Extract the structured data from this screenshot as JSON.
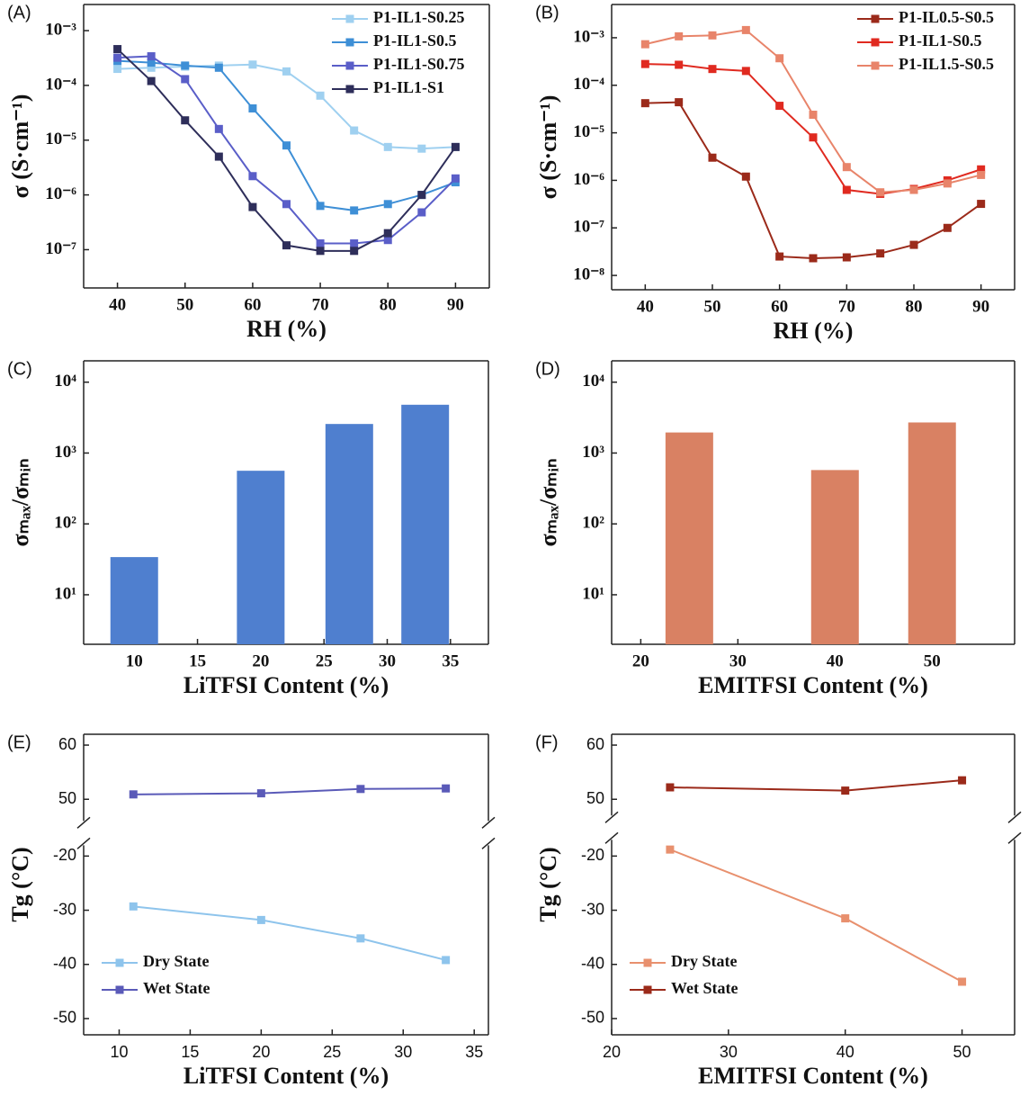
{
  "chart_data": [
    {
      "type": "line",
      "panel": "(A)",
      "xlabel": "RH (%)",
      "ylabel": "σ (S·cm⁻¹)",
      "log_y": true,
      "legend": "upper right",
      "xlim": [
        35,
        95
      ],
      "xticks": [
        40,
        50,
        60,
        70,
        80,
        90
      ],
      "ylim": [
        2e-08,
        0.003
      ],
      "yticks": [
        {
          "value": 1e-07,
          "label": "10⁻⁷"
        },
        {
          "value": 1e-06,
          "label": "10⁻⁶"
        },
        {
          "value": 1e-05,
          "label": "10⁻⁵"
        },
        {
          "value": 0.0001,
          "label": "10⁻⁴"
        },
        {
          "value": 0.001,
          "label": "10⁻³"
        }
      ],
      "x": [
        40,
        45,
        50,
        55,
        60,
        65,
        70,
        75,
        80,
        85,
        90
      ],
      "series": [
        {
          "name": "P1-IL1-S0.25",
          "color": "#9fd0f0",
          "values": [
            0.0002,
            0.00021,
            0.00022,
            0.00023,
            0.00024,
            0.00018,
            6.5e-05,
            1.5e-05,
            7.5e-06,
            7e-06,
            7.5e-06
          ]
        },
        {
          "name": "P1-IL1-S0.5",
          "color": "#3e8fd6",
          "values": [
            0.00028,
            0.00026,
            0.00023,
            0.00021,
            3.8e-05,
            8e-06,
            6.3e-07,
            5.2e-07,
            6.8e-07,
            1e-06,
            1.7e-06
          ]
        },
        {
          "name": "P1-IL1-S0.75",
          "color": "#5a5ec8",
          "values": [
            0.00032,
            0.00034,
            0.00013,
            1.6e-05,
            2.2e-06,
            6.8e-07,
            1.3e-07,
            1.3e-07,
            1.5e-07,
            4.8e-07,
            2e-06
          ]
        },
        {
          "name": "P1-IL1-S1",
          "color": "#2e2e5a",
          "values": [
            0.00046,
            0.00012,
            2.3e-05,
            5e-06,
            6e-07,
            1.2e-07,
            9.5e-08,
            9.5e-08,
            2e-07,
            1e-06,
            7.5e-06
          ]
        }
      ]
    },
    {
      "type": "line",
      "panel": "(B)",
      "xlabel": "RH (%)",
      "ylabel": "σ (S·cm⁻¹)",
      "log_y": true,
      "legend": "upper right",
      "xlim": [
        35,
        95
      ],
      "xticks": [
        40,
        50,
        60,
        70,
        80,
        90
      ],
      "ylim": [
        5e-09,
        0.005
      ],
      "yticks": [
        {
          "value": 1e-08,
          "label": "10⁻⁸"
        },
        {
          "value": 1e-07,
          "label": "10⁻⁷"
        },
        {
          "value": 1e-06,
          "label": "10⁻⁶"
        },
        {
          "value": 1e-05,
          "label": "10⁻⁵"
        },
        {
          "value": 0.0001,
          "label": "10⁻⁴"
        },
        {
          "value": 0.001,
          "label": "10⁻³"
        }
      ],
      "x": [
        40,
        45,
        50,
        55,
        60,
        65,
        70,
        75,
        80,
        85,
        90
      ],
      "series": [
        {
          "name": "P1-IL0.5-S0.5",
          "color": "#9b2a1a",
          "values": [
            4.2e-05,
            4.4e-05,
            3e-06,
            1.2e-06,
            2.5e-08,
            2.3e-08,
            2.4e-08,
            2.9e-08,
            4.4e-08,
            1e-07,
            3.2e-07
          ]
        },
        {
          "name": "P1-IL1-S0.5",
          "color": "#e02a20",
          "values": [
            0.00028,
            0.00027,
            0.00022,
            0.0002,
            3.7e-05,
            8e-06,
            6.3e-07,
            5.2e-07,
            6.6e-07,
            1e-06,
            1.7e-06
          ]
        },
        {
          "name": "P1-IL1.5-S0.5",
          "color": "#e8846a",
          "values": [
            0.00073,
            0.00107,
            0.00112,
            0.00145,
            0.00037,
            2.4e-05,
            1.9e-06,
            5.6e-07,
            6.3e-07,
            8.6e-07,
            1.3e-06
          ]
        }
      ]
    },
    {
      "type": "bar",
      "panel": "(C)",
      "xlabel": "LiTFSI Content (%)",
      "ylabel": "σₘₐₓ/σₘᵢₙ",
      "log_y": true,
      "color": "#4f7fcf",
      "xlim": [
        6,
        38
      ],
      "xticks": [
        10,
        15,
        20,
        25,
        30,
        35
      ],
      "ylim": [
        2,
        20000
      ],
      "yticks": [
        {
          "value": 10,
          "label": "10¹"
        },
        {
          "value": 100,
          "label": "10²"
        },
        {
          "value": 1000,
          "label": "10³"
        },
        {
          "value": 10000,
          "label": "10⁴"
        }
      ],
      "x": [
        10,
        20,
        27,
        33
      ],
      "values": [
        34,
        562,
        2570,
        4800
      ]
    },
    {
      "type": "bar",
      "panel": "(D)",
      "xlabel": "EMITFSI Content (%)",
      "ylabel": "σₘₐₓ/σₘᵢₙ",
      "log_y": true,
      "color": "#d98163",
      "xlim": [
        17,
        58.5
      ],
      "xticks": [
        20,
        30,
        40,
        50
      ],
      "ylim": [
        2,
        20000
      ],
      "yticks": [
        {
          "value": 10,
          "label": "10¹"
        },
        {
          "value": 100,
          "label": "10²"
        },
        {
          "value": 1000,
          "label": "10³"
        },
        {
          "value": 10000,
          "label": "10⁴"
        }
      ],
      "x": [
        25,
        40,
        50
      ],
      "values": [
        1950,
        575,
        2700
      ]
    },
    {
      "type": "line",
      "panel": "(E)",
      "xlabel": "LiTFSI Content (%)",
      "ylabel": "Tg (°C)",
      "legend": "lower left",
      "xlim": [
        7.5,
        36
      ],
      "xticks": [
        10,
        15,
        20,
        25,
        30,
        35
      ],
      "ylim": [
        -53,
        62
      ],
      "ybreak": [
        -18,
        46
      ],
      "yticks": [
        -50,
        -40,
        -30,
        -20,
        50,
        60
      ],
      "x": [
        11,
        20,
        27,
        33
      ],
      "series": [
        {
          "name": "Dry State",
          "color": "#8ec4ec",
          "values": [
            -29.3,
            -31.8,
            -35.2,
            -39.2
          ]
        },
        {
          "name": "Wet State",
          "color": "#5a5ab8",
          "values": [
            50.9,
            51.1,
            51.9,
            52
          ]
        }
      ]
    },
    {
      "type": "line",
      "panel": "(F)",
      "xlabel": "EMITFSI Content (%)",
      "ylabel": "Tg (°C)",
      "legend": "lower left",
      "xlim": [
        20,
        54.5
      ],
      "xticks": [
        20,
        30,
        40,
        50
      ],
      "ylim": [
        -53,
        62
      ],
      "ybreak": [
        -17,
        47
      ],
      "yticks": [
        -50,
        -40,
        -30,
        -20,
        50,
        60
      ],
      "x": [
        25,
        40,
        50
      ],
      "series": [
        {
          "name": "Dry State",
          "color": "#e8906e",
          "values": [
            -18.8,
            -31.5,
            -43.2
          ]
        },
        {
          "name": "Wet State",
          "color": "#9b2a1a",
          "values": [
            52.2,
            51.6,
            53.5
          ]
        }
      ]
    }
  ]
}
